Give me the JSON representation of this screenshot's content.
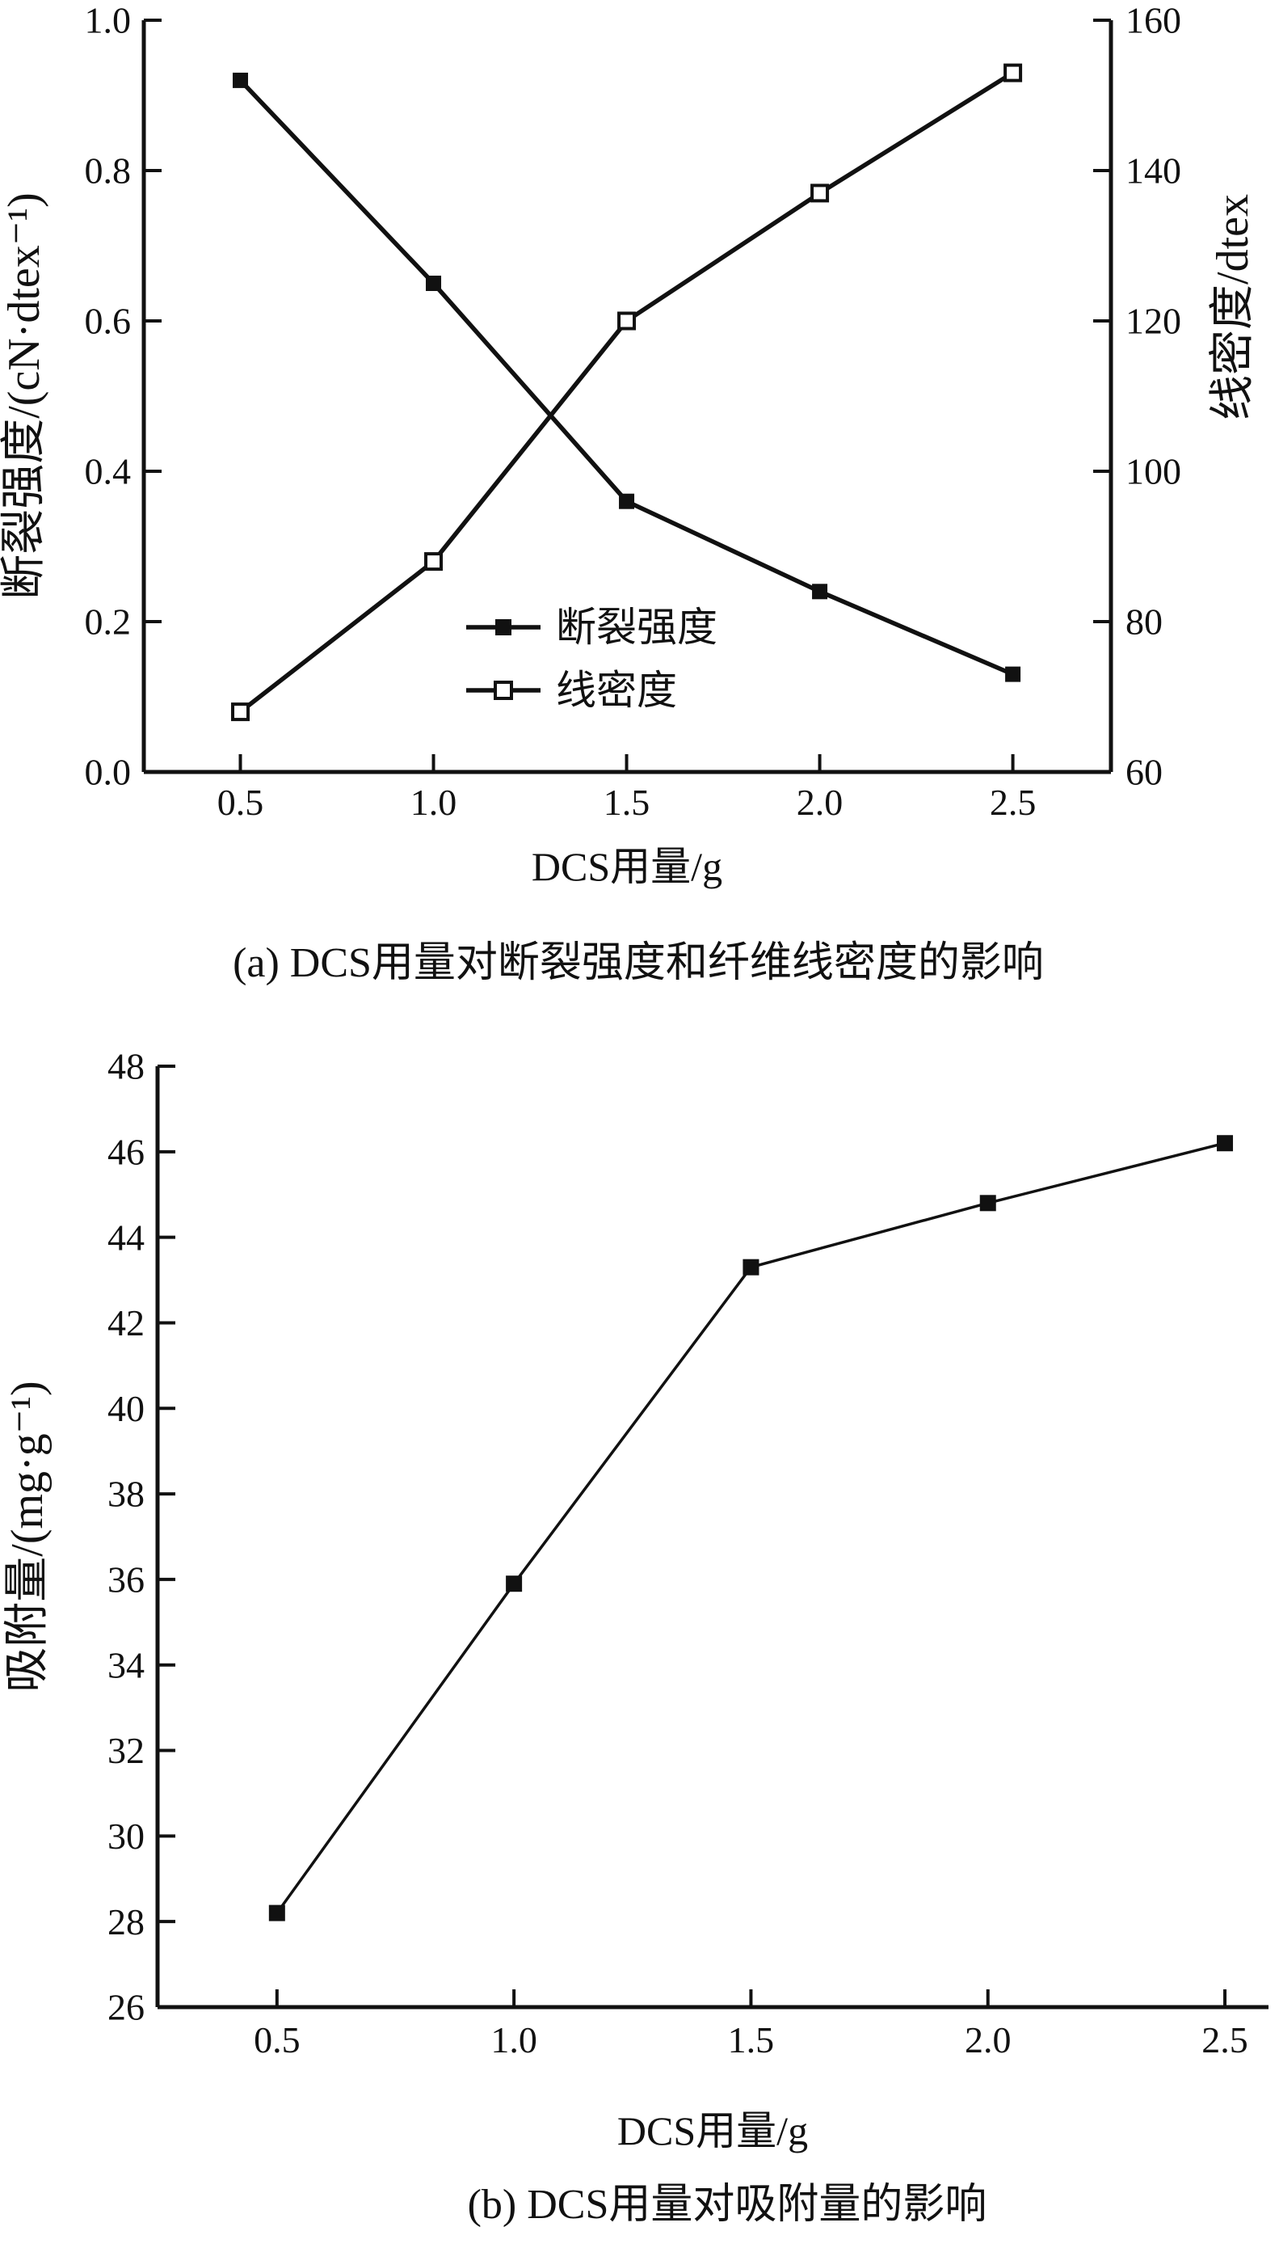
{
  "figure": {
    "background_color": "#ffffff",
    "ink_color": "#111111",
    "marker_filled_color": "#111111",
    "marker_open_fill": "#ffffff"
  },
  "chart_data": [
    {
      "id": "a",
      "type": "line",
      "title": "(a) DCS用量对断裂强度和纤维线密度的影响",
      "xlabel": "DCS用量/g",
      "x": [
        0.5,
        1.0,
        1.5,
        2.0,
        2.5
      ],
      "x_tick_labels": [
        "0.5",
        "1.0",
        "1.5",
        "2.0",
        "2.5"
      ],
      "xlim": [
        0.25,
        2.754
      ],
      "grid": false,
      "legend_position": "inside-bottom-center",
      "axes": {
        "left": {
          "label": "断裂强度/(cN·dtex⁻¹)",
          "lim": [
            0,
            1
          ],
          "ticks": [
            0.0,
            0.2,
            0.4,
            0.6,
            0.8,
            1.0
          ],
          "tick_labels": [
            "0.0",
            "0.2",
            "0.4",
            "0.6",
            "0.8",
            "1.0"
          ]
        },
        "right": {
          "label": "线密度/dtex",
          "lim": [
            60,
            160
          ],
          "ticks": [
            60,
            80,
            100,
            120,
            140,
            160
          ],
          "tick_labels": [
            "60",
            "80",
            "100",
            "120",
            "140",
            "160"
          ]
        }
      },
      "series": [
        {
          "name": "断裂强度",
          "axis": "left",
          "marker": "filled-square",
          "values": [
            0.92,
            0.65,
            0.36,
            0.24,
            0.13
          ]
        },
        {
          "name": "线密度",
          "axis": "right",
          "marker": "open-square",
          "values": [
            68,
            88,
            120,
            137,
            153
          ]
        }
      ]
    },
    {
      "id": "b",
      "type": "line",
      "title": "(b) DCS用量对吸附量的影响",
      "xlabel": "DCS用量/g",
      "ylabel": "吸附量/(mg·g⁻¹)",
      "x": [
        0.5,
        1.0,
        1.5,
        2.0,
        2.5
      ],
      "x_tick_labels": [
        "0.5",
        "1.0",
        "1.5",
        "2.0",
        "2.5"
      ],
      "xlim": [
        0.248,
        2.592
      ],
      "ylim": [
        26,
        48
      ],
      "y_ticks": [
        26,
        28,
        30,
        32,
        34,
        36,
        38,
        40,
        42,
        44,
        46,
        48
      ],
      "y_tick_labels": [
        "26",
        "28",
        "30",
        "32",
        "34",
        "36",
        "38",
        "40",
        "42",
        "44",
        "46",
        "48"
      ],
      "grid": false,
      "series": [
        {
          "name": "吸附量",
          "axis": "left",
          "marker": "filled-square",
          "values": [
            28.2,
            35.9,
            43.3,
            44.8,
            46.2
          ]
        }
      ]
    }
  ]
}
